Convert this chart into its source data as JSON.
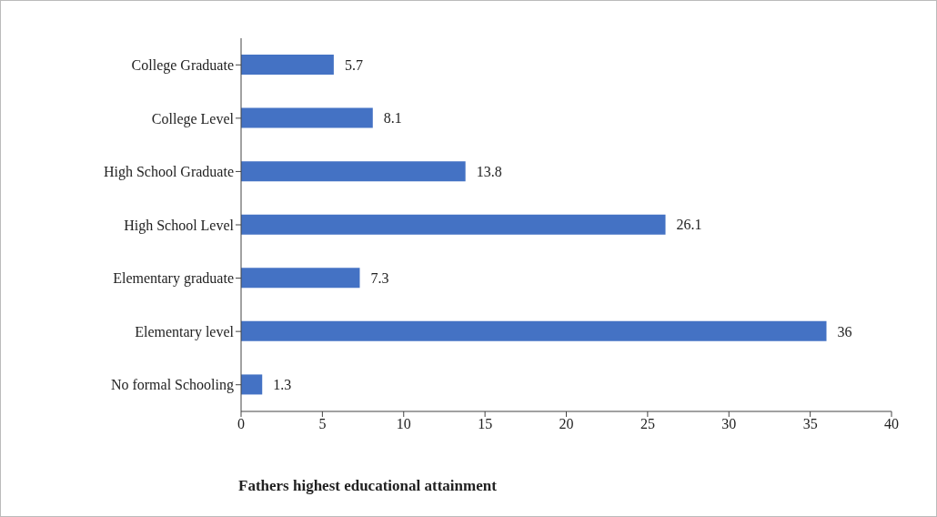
{
  "chart_data": {
    "type": "bar",
    "orientation": "horizontal",
    "xlabel": "Fathers highest educational attainment",
    "categories": [
      "College Graduate",
      "College Level",
      "High School Graduate",
      "High School Level",
      "Elementary graduate",
      "Elementary level",
      "No formal Schooling"
    ],
    "values": [
      5.7,
      8.1,
      13.8,
      26.1,
      7.3,
      36,
      1.3
    ],
    "color": "#4472c4",
    "xlim": [
      0,
      40
    ],
    "xticks": [
      0,
      5,
      10,
      15,
      20,
      25,
      30,
      35,
      40
    ],
    "grid": false,
    "data_labels": true
  }
}
